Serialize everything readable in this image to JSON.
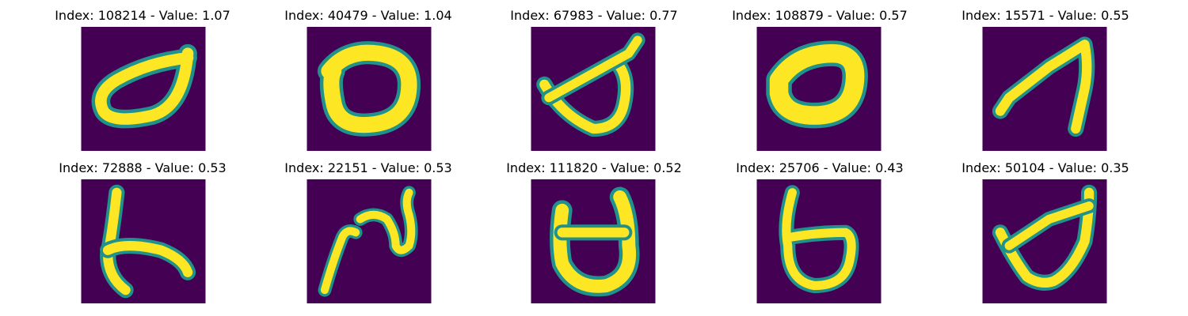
{
  "figure": {
    "colormap": [
      "#440154",
      "#3b528b",
      "#21918c",
      "#5ec962",
      "#fde725"
    ],
    "panels": [
      {
        "index": "108214",
        "value": "1.07",
        "title": "Index: 108214 - Value: 1.07",
        "glyph": "loop-with-tail-up-right"
      },
      {
        "index": "40479",
        "value": "1.04",
        "title": "Index: 40479 - Value: 1.04",
        "glyph": "thick-oval"
      },
      {
        "index": "67983",
        "value": "0.77",
        "title": "Index: 67983 - Value: 0.77",
        "glyph": "cup-with-crossbar"
      },
      {
        "index": "108879",
        "value": "0.57",
        "title": "Index: 108879 - Value: 0.57",
        "glyph": "thick-oval"
      },
      {
        "index": "15571",
        "value": "0.55",
        "title": "Index: 15571 - Value: 0.55",
        "glyph": "hook-stroke"
      },
      {
        "index": "72888",
        "value": "0.53",
        "title": "Index: 72888 - Value: 0.53",
        "glyph": "vertical-with-diagonal"
      },
      {
        "index": "22151",
        "value": "0.53",
        "title": "Index: 22151 - Value: 0.53",
        "glyph": "wave-squiggle"
      },
      {
        "index": "111820",
        "value": "0.52",
        "title": "Index: 111820 - Value: 0.52",
        "glyph": "u-shape-with-bar"
      },
      {
        "index": "25706",
        "value": "0.43",
        "title": "Index: 25706 - Value: 0.43",
        "glyph": "loop-with-stem"
      },
      {
        "index": "50104",
        "value": "0.35",
        "title": "Index: 50104 - Value: 0.35",
        "glyph": "cup-with-crossbar"
      }
    ]
  }
}
